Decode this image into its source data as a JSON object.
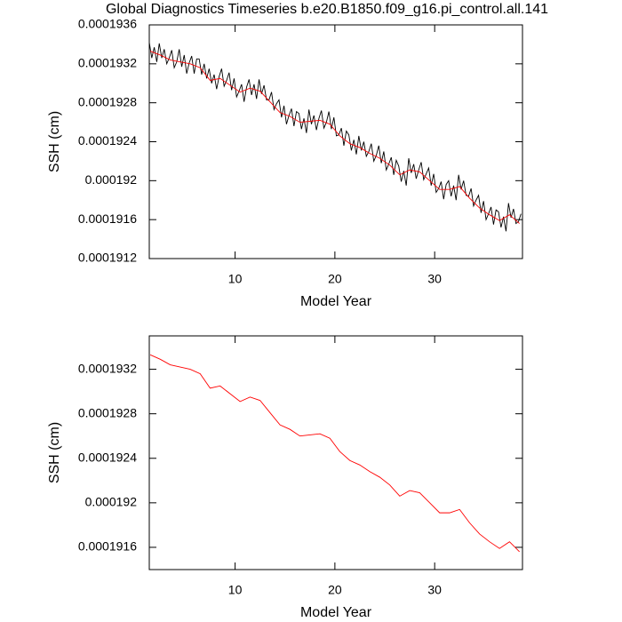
{
  "chart_data": [
    {
      "type": "line",
      "title": "Global Diagnostics Timeseries b.e20.B1850.f09_g16.pi_control.all.141",
      "xlabel": "Model Year",
      "ylabel": "SSH (cm)",
      "xlim": [
        1.4,
        38.8
      ],
      "xticks": [
        10,
        20,
        30
      ],
      "ylim": [
        0.0001912,
        0.0001936
      ],
      "yticks": [
        0.0001912,
        0.0001916,
        0.000192,
        0.0001924,
        0.0001928,
        0.0001932,
        0.0001936
      ],
      "series": [
        {
          "color": "#000000",
          "x": [
            1.4,
            1.65,
            1.9,
            2.15,
            2.4,
            2.65,
            2.9,
            3.15,
            3.4,
            3.65,
            3.9,
            4.15,
            4.4,
            4.65,
            4.9,
            5.15,
            5.4,
            5.65,
            5.9,
            6.15,
            6.4,
            6.65,
            6.9,
            7.15,
            7.4,
            7.65,
            7.9,
            8.15,
            8.4,
            8.65,
            8.9,
            9.15,
            9.4,
            9.65,
            9.9,
            10.15,
            10.4,
            10.65,
            10.9,
            11.15,
            11.4,
            11.65,
            11.9,
            12.15,
            12.4,
            12.65,
            12.9,
            13.15,
            13.4,
            13.65,
            13.9,
            14.15,
            14.4,
            14.65,
            14.9,
            15.15,
            15.4,
            15.65,
            15.9,
            16.15,
            16.4,
            16.65,
            16.9,
            17.15,
            17.4,
            17.65,
            17.9,
            18.15,
            18.4,
            18.65,
            18.9,
            19.15,
            19.4,
            19.65,
            19.9,
            20.15,
            20.4,
            20.65,
            20.9,
            21.15,
            21.4,
            21.65,
            21.9,
            22.15,
            22.4,
            22.65,
            22.9,
            23.15,
            23.4,
            23.65,
            23.9,
            24.15,
            24.4,
            24.65,
            24.9,
            25.15,
            25.4,
            25.65,
            25.9,
            26.15,
            26.4,
            26.65,
            26.9,
            27.15,
            27.4,
            27.65,
            27.9,
            28.15,
            28.4,
            28.65,
            28.9,
            29.15,
            29.4,
            29.65,
            29.9,
            30.15,
            30.4,
            30.65,
            30.9,
            31.15,
            31.4,
            31.65,
            31.9,
            32.15,
            32.4,
            32.65,
            32.9,
            33.15,
            33.4,
            33.65,
            33.9,
            34.15,
            34.4,
            34.65,
            34.9,
            35.15,
            35.4,
            35.65,
            35.9,
            36.15,
            36.4,
            36.65,
            36.9,
            37.15,
            37.4,
            37.65,
            37.9,
            38.15,
            38.4,
            38.65
          ],
          "values": [
            0.00019342,
            0.00019326,
            0.00019337,
            0.00019322,
            0.00019341,
            0.00019326,
            0.00019335,
            0.0001932,
            0.00019326,
            0.00019334,
            0.00019316,
            0.00019322,
            0.00019335,
            0.00019317,
            0.00019329,
            0.0001931,
            0.00019321,
            0.00019328,
            0.0001931,
            0.00019325,
            0.00019325,
            0.00019309,
            0.0001932,
            0.00019305,
            0.00019315,
            0.000193,
            0.00019309,
            0.00019294,
            0.00019307,
            0.00019315,
            0.00019297,
            0.00019303,
            0.00019311,
            0.00019293,
            0.00019305,
            0.00019286,
            0.00019292,
            0.00019299,
            0.00019281,
            0.00019296,
            0.00019304,
            0.00019288,
            0.00019299,
            0.00019284,
            0.00019304,
            0.00019289,
            0.00019298,
            0.00019283,
            0.00019283,
            0.00019291,
            0.00019273,
            0.00019279,
            0.00019283,
            0.00019265,
            0.00019277,
            0.00019258,
            0.00019267,
            0.00019274,
            0.00019256,
            0.00019271,
            0.00019269,
            0.00019253,
            0.00019264,
            0.00019249,
            0.00019273,
            0.00019258,
            0.00019267,
            0.00019252,
            0.00019264,
            0.00019272,
            0.00019254,
            0.0001926,
            0.00019271,
            0.00019253,
            0.00019265,
            0.00019246,
            0.00019247,
            0.00019254,
            0.00019236,
            0.00019251,
            0.00019247,
            0.00019231,
            0.00019242,
            0.00019227,
            0.00019246,
            0.00019231,
            0.0001924,
            0.00019225,
            0.0001923,
            0.00019238,
            0.0001922,
            0.00019226,
            0.00019236,
            0.00019218,
            0.0001923,
            0.00019211,
            0.00019217,
            0.00019224,
            0.00019206,
            0.00019221,
            0.00019215,
            0.00019199,
            0.0001921,
            0.00019195,
            0.00019223,
            0.00019208,
            0.00019217,
            0.00019202,
            0.00019211,
            0.00019219,
            0.00019201,
            0.00019207,
            0.00019213,
            0.00019195,
            0.00019207,
            0.00019188,
            0.00019192,
            0.00019199,
            0.00019181,
            0.00019196,
            0.000192,
            0.00019184,
            0.00019195,
            0.0001918,
            0.00019206,
            0.00019191,
            0.000192,
            0.00019185,
            0.00019184,
            0.00019192,
            0.00019174,
            0.0001918,
            0.00019185,
            0.00019167,
            0.00019179,
            0.0001916,
            0.00019166,
            0.00019173,
            0.00019155,
            0.0001917,
            0.00019168,
            0.00019152,
            0.00019163,
            0.00019148,
            0.00019177,
            0.00019162,
            0.00019171,
            0.00019156,
            0.00019158,
            0.00019166
          ]
        },
        {
          "color": "#ff0000",
          "x": [
            1.5,
            2.5,
            3.5,
            4.5,
            5.5,
            6.5,
            7.5,
            8.5,
            9.5,
            10.5,
            11.5,
            12.5,
            13.5,
            14.5,
            15.5,
            16.5,
            17.5,
            18.5,
            19.5,
            20.5,
            21.5,
            22.5,
            23.5,
            24.5,
            25.5,
            26.5,
            27.5,
            28.5,
            29.5,
            30.5,
            31.5,
            32.5,
            33.5,
            34.5,
            35.5,
            36.5,
            37.5,
            38.5
          ],
          "values": [
            0.00019333,
            0.00019329,
            0.00019324,
            0.00019322,
            0.0001932,
            0.00019316,
            0.00019303,
            0.00019305,
            0.00019298,
            0.00019291,
            0.00019295,
            0.00019292,
            0.00019281,
            0.0001927,
            0.00019266,
            0.0001926,
            0.00019261,
            0.00019262,
            0.00019258,
            0.00019246,
            0.00019238,
            0.00019234,
            0.00019228,
            0.00019223,
            0.00019216,
            0.00019206,
            0.00019211,
            0.00019209,
            0.000192,
            0.00019191,
            0.00019191,
            0.00019194,
            0.00019182,
            0.00019172,
            0.00019165,
            0.00019159,
            0.00019165,
            0.00019156
          ]
        }
      ]
    },
    {
      "type": "line",
      "xlabel": "Model Year",
      "ylabel": "SSH (cm)",
      "xlim": [
        1.4,
        38.8
      ],
      "xticks": [
        10,
        20,
        30
      ],
      "ylim": [
        0.0001914,
        0.0001935
      ],
      "yticks": [
        0.0001916,
        0.000192,
        0.0001924,
        0.0001928,
        0.0001932
      ],
      "series": [
        {
          "color": "#ff0000",
          "x": [
            1.5,
            2.5,
            3.5,
            4.5,
            5.5,
            6.5,
            7.5,
            8.5,
            9.5,
            10.5,
            11.5,
            12.5,
            13.5,
            14.5,
            15.5,
            16.5,
            17.5,
            18.5,
            19.5,
            20.5,
            21.5,
            22.5,
            23.5,
            24.5,
            25.5,
            26.5,
            27.5,
            28.5,
            29.5,
            30.5,
            31.5,
            32.5,
            33.5,
            34.5,
            35.5,
            36.5,
            37.5,
            38.5
          ],
          "values": [
            0.00019333,
            0.00019329,
            0.00019324,
            0.00019322,
            0.0001932,
            0.00019316,
            0.00019303,
            0.00019305,
            0.00019298,
            0.00019291,
            0.00019295,
            0.00019292,
            0.00019281,
            0.0001927,
            0.00019266,
            0.0001926,
            0.00019261,
            0.00019262,
            0.00019258,
            0.00019246,
            0.00019238,
            0.00019234,
            0.00019228,
            0.00019223,
            0.00019216,
            0.00019206,
            0.00019211,
            0.00019209,
            0.000192,
            0.00019191,
            0.00019191,
            0.00019194,
            0.00019182,
            0.00019172,
            0.00019165,
            0.00019159,
            0.00019165,
            0.00019156
          ]
        }
      ]
    }
  ]
}
